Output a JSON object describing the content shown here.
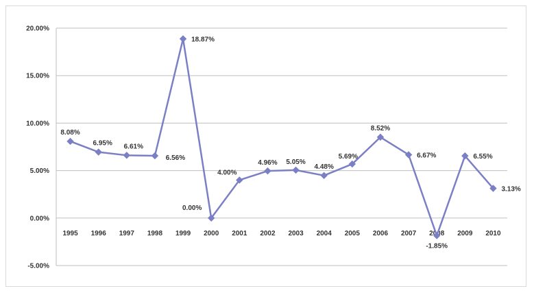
{
  "chart_data": {
    "type": "line",
    "title": "",
    "xlabel": "",
    "ylabel": "",
    "ylim": [
      -5,
      20
    ],
    "ytick_step": 5,
    "ytick_format": "percent_2dp",
    "grid": {
      "horizontal": true,
      "vertical": false
    },
    "legend": "none",
    "categories": [
      "1995",
      "1996",
      "1997",
      "1998",
      "1999",
      "2000",
      "2001",
      "2002",
      "2003",
      "2004",
      "2005",
      "2006",
      "2007",
      "2008",
      "2009",
      "2010"
    ],
    "series": [
      {
        "values": [
          8.08,
          6.95,
          6.61,
          6.56,
          18.87,
          0.0,
          4.0,
          4.96,
          5.05,
          4.48,
          5.69,
          8.52,
          6.67,
          -1.85,
          6.55,
          3.13
        ],
        "labels": [
          "8.08%",
          "6.95%",
          "6.61%",
          "6.56%",
          "18.87%",
          "0.00%",
          "4.00%",
          "4.96%",
          "5.05%",
          "4.48%",
          "5.69%",
          "8.52%",
          "6.67%",
          "-1.85%",
          "6.55%",
          "3.13%"
        ],
        "color": "#7b7fc4"
      }
    ]
  }
}
